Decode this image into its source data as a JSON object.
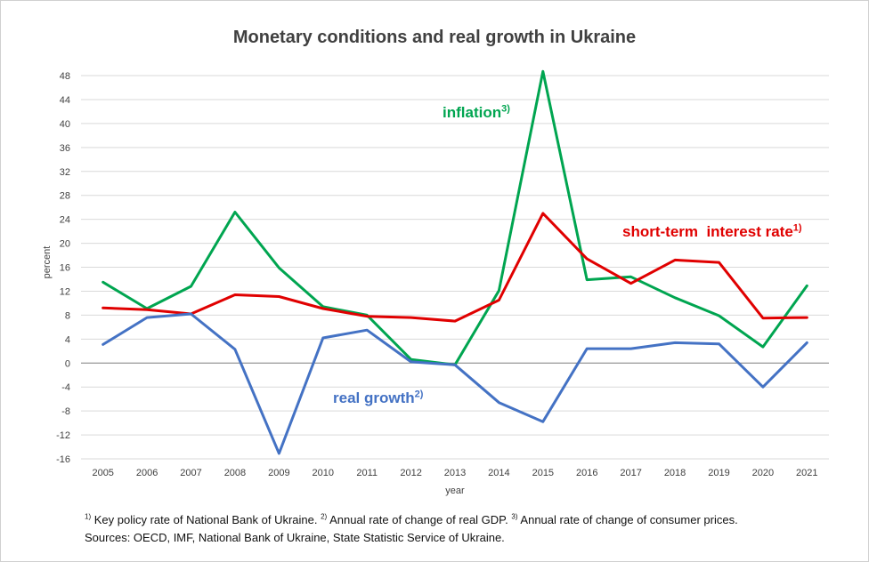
{
  "chart_data": {
    "type": "line",
    "title": "Monetary conditions and real growth in Ukraine",
    "xlabel": "year",
    "ylabel": "percent",
    "ylim": [
      -16,
      48
    ],
    "yticks": [
      -16,
      -12,
      -8,
      -4,
      0,
      4,
      8,
      12,
      16,
      20,
      24,
      28,
      32,
      36,
      40,
      44,
      48
    ],
    "grid": true,
    "x": [
      "2005",
      "2006",
      "2007",
      "2008",
      "2009",
      "2010",
      "2011",
      "2012",
      "2013",
      "2014",
      "2015",
      "2016",
      "2017",
      "2018",
      "2019",
      "2020",
      "2021"
    ],
    "series": [
      {
        "name": "inflation",
        "footnote_ref": "3)",
        "color": "#00a550",
        "values": [
          13.5,
          9.1,
          12.8,
          25.2,
          15.9,
          9.4,
          8.0,
          0.6,
          -0.3,
          12.1,
          48.7,
          13.9,
          14.4,
          10.9,
          7.9,
          2.7,
          12.9
        ]
      },
      {
        "name": "short-term  interest rate",
        "footnote_ref": "1)",
        "color": "#e00000",
        "values": [
          9.2,
          8.9,
          8.2,
          11.4,
          11.1,
          9.1,
          7.8,
          7.6,
          7.0,
          10.5,
          25.0,
          17.4,
          13.3,
          17.2,
          16.8,
          7.5,
          7.6
        ]
      },
      {
        "name": "real growth",
        "footnote_ref": "2)",
        "color": "#4472c4",
        "values": [
          3.1,
          7.6,
          8.2,
          2.3,
          -15.1,
          4.2,
          5.5,
          0.2,
          -0.3,
          -6.6,
          -9.8,
          2.4,
          2.4,
          3.4,
          3.2,
          -4.0,
          3.4
        ]
      }
    ],
    "footnotes": {
      "ref1": "1)",
      "text1": " Key policy rate of National Bank of Ukraine. ",
      "ref2": "2)",
      "text2": " Annual rate of change of real GDP. ",
      "ref3": "3)",
      "text3": " Annual rate of change of consumer prices."
    },
    "sources": "Sources: OECD, IMF, National Bank of Ukraine, State Statistic Service of Ukraine."
  }
}
